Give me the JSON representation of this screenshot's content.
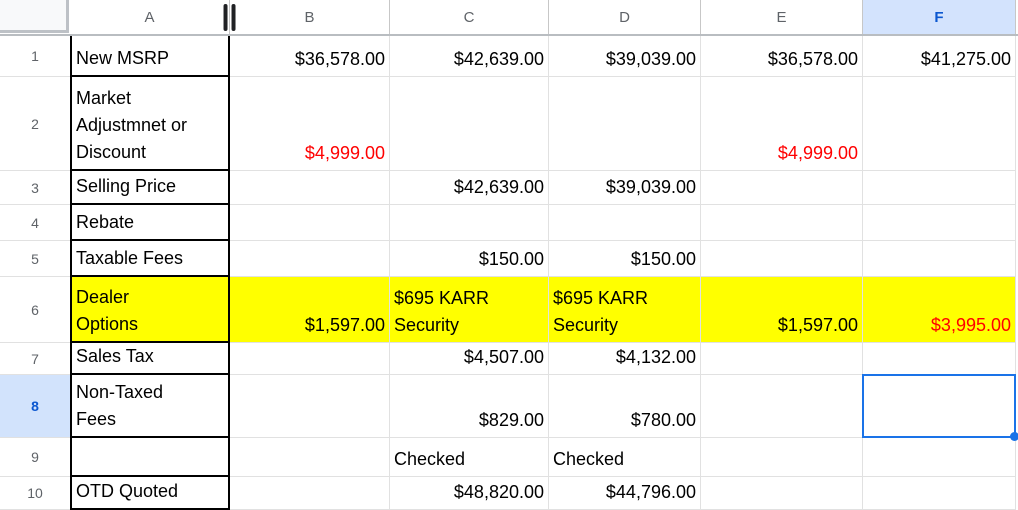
{
  "sheet": {
    "column_headers": [
      "A",
      "B",
      "C",
      "D",
      "E",
      "F"
    ],
    "selected_column": "F",
    "selected_row": 8,
    "selected_cell": "F8",
    "resize_handle_after_column": "A",
    "rows": [
      {
        "num": 1,
        "cells": [
          "New MSRP",
          "$36,578.00",
          "$42,639.00",
          "$39,039.00",
          "$36,578.00",
          "$41,275.00"
        ]
      },
      {
        "num": 2,
        "cells": [
          "Market\nAdjustmnet or\nDiscount",
          "$4,999.00",
          "",
          "",
          "$4,999.00",
          ""
        ]
      },
      {
        "num": 3,
        "cells": [
          "Selling Price",
          "",
          "$42,639.00",
          "$39,039.00",
          "",
          ""
        ]
      },
      {
        "num": 4,
        "cells": [
          "Rebate",
          "",
          "",
          "",
          "",
          ""
        ]
      },
      {
        "num": 5,
        "cells": [
          "Taxable Fees",
          "",
          "$150.00",
          "$150.00",
          "",
          ""
        ]
      },
      {
        "num": 6,
        "cells": [
          "Dealer\nOptions",
          "$1,597.00",
          "$695 KARR\nSecurity",
          "$695 KARR\nSecurity",
          "$1,597.00",
          "$3,995.00"
        ]
      },
      {
        "num": 7,
        "cells": [
          "Sales Tax",
          "",
          "$4,507.00",
          "$4,132.00",
          "",
          ""
        ]
      },
      {
        "num": 8,
        "cells": [
          "Non-Taxed\nFees",
          "",
          "$829.00",
          "$780.00",
          "",
          ""
        ]
      },
      {
        "num": 9,
        "cells": [
          "",
          "",
          "Checked",
          "Checked",
          "",
          ""
        ]
      },
      {
        "num": 10,
        "cells": [
          "OTD Quoted",
          "",
          "$48,820.00",
          "$44,796.00",
          "",
          ""
        ]
      }
    ],
    "red_text_cells": [
      "B2",
      "E2",
      "F6"
    ],
    "yellow_highlight_rows": [
      6
    ],
    "left_aligned_cells": [
      "C6",
      "D6",
      "C9",
      "D9"
    ]
  },
  "colors": {
    "selection_blue": "#1a73e8",
    "selected_header_bg": "#d3e3fd",
    "selected_header_text": "#0b57d0",
    "red_text": "#ff0000",
    "yellow_highlight": "#ffff00",
    "grid_line": "#e1e1e1",
    "black_border": "#000000",
    "header_text": "#5f6368"
  }
}
